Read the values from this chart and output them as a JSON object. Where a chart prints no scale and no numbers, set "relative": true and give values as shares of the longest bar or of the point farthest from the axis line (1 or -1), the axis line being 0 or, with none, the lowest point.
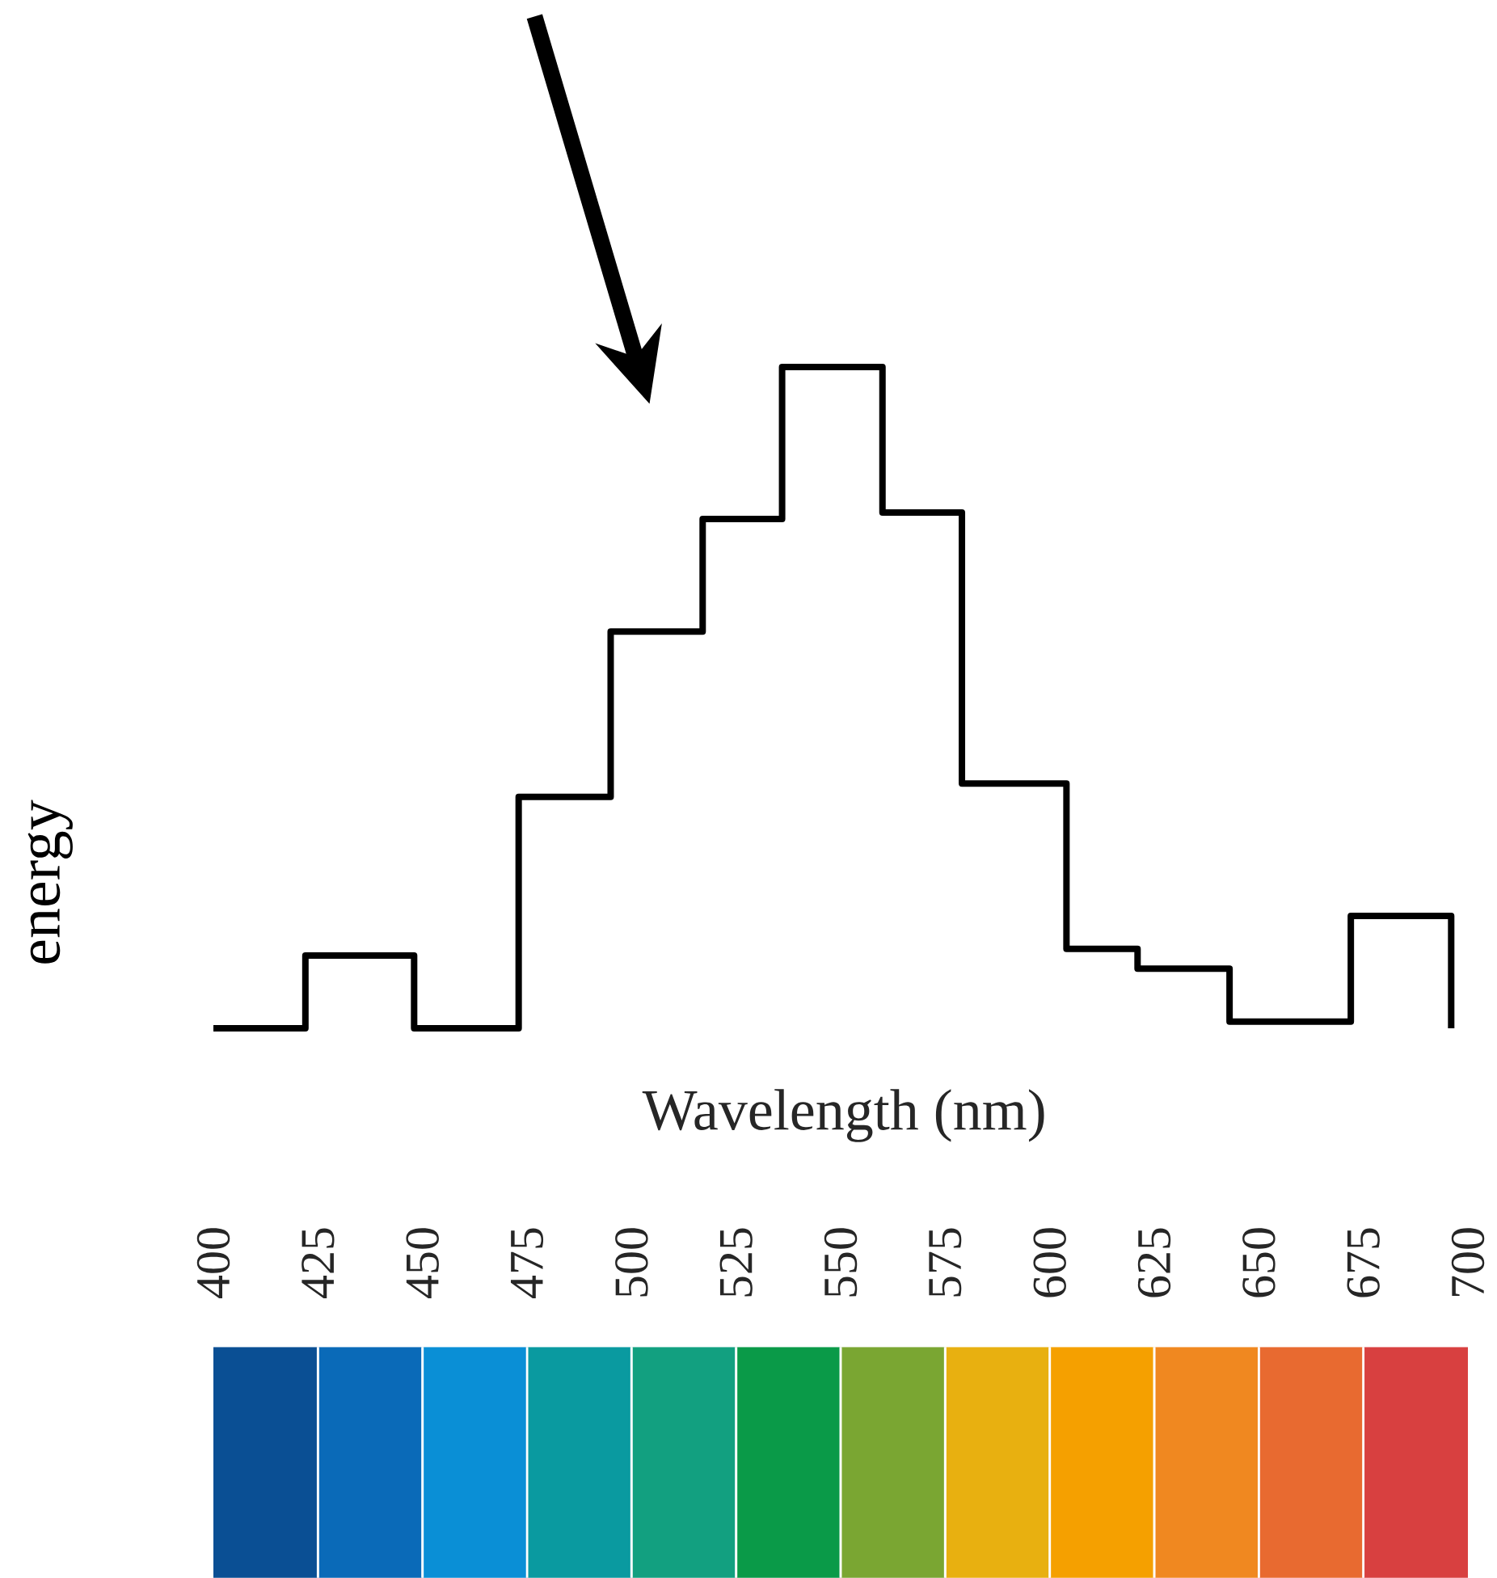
{
  "chart_data": {
    "type": "step",
    "xlabel": "Wavelength (nm)",
    "ylabel": "energy",
    "relative": true,
    "color": "#000000",
    "x": [
      400,
      422,
      448,
      473,
      495,
      517,
      536,
      560,
      579,
      604,
      621,
      643,
      672,
      696
    ],
    "values": [
      0,
      0.11,
      0,
      0.35,
      0.6,
      0.77,
      1,
      0.78,
      0.37,
      0.12,
      0.09,
      0.01,
      0.17,
      0
    ],
    "xlim": [
      400,
      700
    ],
    "xticks": [
      400,
      425,
      450,
      475,
      500,
      525,
      550,
      575,
      600,
      625,
      650,
      675,
      700
    ]
  }
}
